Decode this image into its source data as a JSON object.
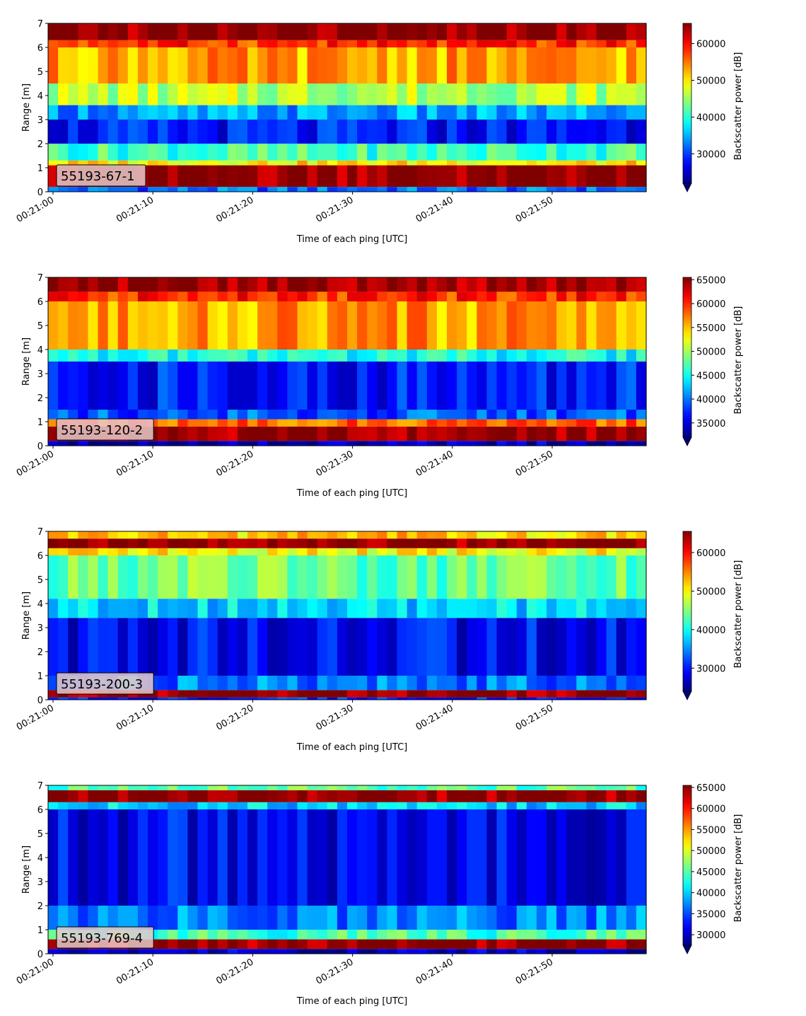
{
  "chart_data": [
    {
      "type": "heatmap",
      "panel_label": "55193-67-1",
      "xlabel": "Time of each ping [UTC]",
      "ylabel": "Range [m]",
      "x_ticks": [
        "00:21:00",
        "00:21:10",
        "00:21:20",
        "00:21:30",
        "00:21:40",
        "00:21:50"
      ],
      "y_ticks": [
        "0",
        "1",
        "2",
        "3",
        "4",
        "5",
        "6",
        "7"
      ],
      "ylim": [
        0,
        7
      ],
      "x_seconds_range": [
        0,
        60
      ],
      "colorbar": {
        "label": "Backscatter power [dB]",
        "range": [
          22000,
          65500
        ],
        "ticks": [
          "30000",
          "40000",
          "50000",
          "60000"
        ],
        "extend": "min",
        "colormap": "jet"
      },
      "profile_bands": [
        {
          "range_m": [
            0.0,
            0.2
          ],
          "power": 32000
        },
        {
          "range_m": [
            0.2,
            1.1
          ],
          "power": 65000
        },
        {
          "range_m": [
            1.1,
            1.3
          ],
          "power": 50000
        },
        {
          "range_m": [
            1.3,
            2.0
          ],
          "power": 41000
        },
        {
          "range_m": [
            2.0,
            3.0
          ],
          "power": 28000
        },
        {
          "range_m": [
            3.0,
            3.6
          ],
          "power": 34000
        },
        {
          "range_m": [
            3.6,
            4.5
          ],
          "power": 46000
        },
        {
          "range_m": [
            4.5,
            6.0
          ],
          "power": 53000
        },
        {
          "range_m": [
            6.0,
            6.3
          ],
          "power": 58000
        },
        {
          "range_m": [
            6.3,
            7.0
          ],
          "power": 65000
        }
      ]
    },
    {
      "type": "heatmap",
      "panel_label": "55193-120-2",
      "xlabel": "Time of each ping [UTC]",
      "ylabel": "Range [m]",
      "x_ticks": [
        "00:21:00",
        "00:21:10",
        "00:21:20",
        "00:21:30",
        "00:21:40",
        "00:21:50"
      ],
      "y_ticks": [
        "0",
        "1",
        "2",
        "3",
        "4",
        "5",
        "6",
        "7"
      ],
      "ylim": [
        0,
        7
      ],
      "x_seconds_range": [
        0,
        60
      ],
      "colorbar": {
        "label": "Backscatter power [dB]",
        "range": [
          32000,
          65500
        ],
        "ticks": [
          "35000",
          "40000",
          "45000",
          "50000",
          "55000",
          "60000",
          "65000"
        ],
        "extend": "min",
        "colormap": "jet"
      },
      "profile_bands": [
        {
          "range_m": [
            0.0,
            0.2
          ],
          "power": 34000
        },
        {
          "range_m": [
            0.2,
            0.8
          ],
          "power": 65000
        },
        {
          "range_m": [
            0.8,
            1.1
          ],
          "power": 58000
        },
        {
          "range_m": [
            1.1,
            1.5
          ],
          "power": 39000
        },
        {
          "range_m": [
            1.5,
            3.5
          ],
          "power": 37000
        },
        {
          "range_m": [
            3.5,
            4.0
          ],
          "power": 45000
        },
        {
          "range_m": [
            4.0,
            6.0
          ],
          "power": 56000
        },
        {
          "range_m": [
            6.0,
            6.4
          ],
          "power": 60000
        },
        {
          "range_m": [
            6.4,
            7.0
          ],
          "power": 65000
        }
      ]
    },
    {
      "type": "heatmap",
      "panel_label": "55193-200-3",
      "xlabel": "Time of each ping [UTC]",
      "ylabel": "Range [m]",
      "x_ticks": [
        "00:21:00",
        "00:21:10",
        "00:21:20",
        "00:21:30",
        "00:21:40",
        "00:21:50"
      ],
      "y_ticks": [
        "0",
        "1",
        "2",
        "3",
        "4",
        "5",
        "6",
        "7"
      ],
      "ylim": [
        0,
        7
      ],
      "x_seconds_range": [
        0,
        60
      ],
      "colorbar": {
        "label": "Backscatter power [dB]",
        "range": [
          24000,
          65500
        ],
        "ticks": [
          "30000",
          "40000",
          "50000",
          "60000"
        ],
        "extend": "min",
        "colormap": "jet"
      },
      "profile_bands": [
        {
          "range_m": [
            0.0,
            0.1
          ],
          "power": 30000
        },
        {
          "range_m": [
            0.1,
            0.4
          ],
          "power": 65000
        },
        {
          "range_m": [
            0.4,
            1.0
          ],
          "power": 34000
        },
        {
          "range_m": [
            1.0,
            3.4
          ],
          "power": 29000
        },
        {
          "range_m": [
            3.4,
            4.2
          ],
          "power": 38000
        },
        {
          "range_m": [
            4.2,
            6.0
          ],
          "power": 44000
        },
        {
          "range_m": [
            6.0,
            6.3
          ],
          "power": 50000
        },
        {
          "range_m": [
            6.3,
            6.7
          ],
          "power": 65000
        },
        {
          "range_m": [
            6.7,
            7.0
          ],
          "power": 52000
        }
      ]
    },
    {
      "type": "heatmap",
      "panel_label": "55193-769-4",
      "xlabel": "Time of each ping [UTC]",
      "ylabel": "Range [m]",
      "x_ticks": [
        "00:21:00",
        "00:21:10",
        "00:21:20",
        "00:21:30",
        "00:21:40",
        "00:21:50"
      ],
      "y_ticks": [
        "0",
        "1",
        "2",
        "3",
        "4",
        "5",
        "6",
        "7"
      ],
      "ylim": [
        0,
        7
      ],
      "x_seconds_range": [
        0,
        60
      ],
      "colorbar": {
        "label": "Backscatter power [dB]",
        "range": [
          27500,
          65500
        ],
        "ticks": [
          "30000",
          "35000",
          "40000",
          "45000",
          "50000",
          "55000",
          "60000",
          "65000"
        ],
        "extend": "min",
        "colormap": "jet"
      },
      "profile_bands": [
        {
          "range_m": [
            0.0,
            0.2
          ],
          "power": 30000
        },
        {
          "range_m": [
            0.2,
            0.6
          ],
          "power": 65000
        },
        {
          "range_m": [
            0.6,
            1.0
          ],
          "power": 44000
        },
        {
          "range_m": [
            1.0,
            2.0
          ],
          "power": 37000
        },
        {
          "range_m": [
            2.0,
            6.0
          ],
          "power": 32000
        },
        {
          "range_m": [
            6.0,
            6.3
          ],
          "power": 40000
        },
        {
          "range_m": [
            6.3,
            6.8
          ],
          "power": 65000
        },
        {
          "range_m": [
            6.8,
            7.0
          ],
          "power": 45000
        }
      ]
    }
  ]
}
